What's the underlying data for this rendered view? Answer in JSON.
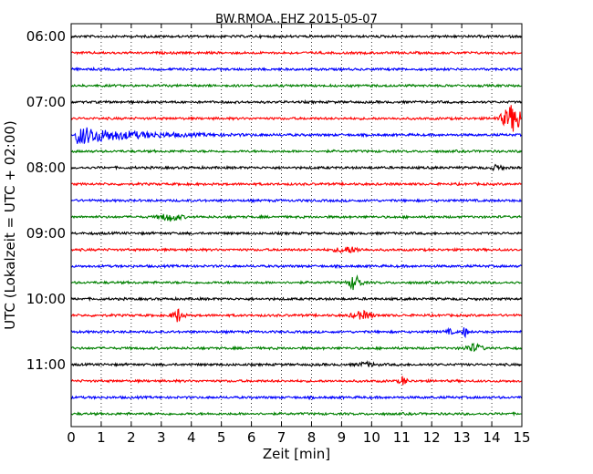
{
  "chart_data": {
    "type": "line",
    "title": "BW.RMOA..EHZ 2015-05-07",
    "xlabel": "Zeit  [min]",
    "ylabel": "UTC (Lokalzeit = UTC + 02:00)",
    "xlim": [
      0,
      15
    ],
    "x_ticks": [
      "0",
      "1",
      "2",
      "3",
      "4",
      "5",
      "6",
      "7",
      "8",
      "9",
      "10",
      "11",
      "12",
      "13",
      "14",
      "15"
    ],
    "y_ticks": [
      "06:00",
      "07:00",
      "08:00",
      "09:00",
      "10:00",
      "11:00"
    ],
    "grid": {
      "vertical": true,
      "style": "dotted"
    },
    "trace_colors": [
      "#000000",
      "#ff0000",
      "#0000ff",
      "#008000"
    ],
    "series": [
      {
        "start": "06:00",
        "color": "#000000",
        "events": []
      },
      {
        "start": "06:15",
        "color": "#ff0000",
        "events": []
      },
      {
        "start": "06:30",
        "color": "#0000ff",
        "events": []
      },
      {
        "start": "06:45",
        "color": "#008000",
        "events": []
      },
      {
        "start": "07:00",
        "color": "#000000",
        "events": []
      },
      {
        "start": "07:15",
        "color": "#ff0000",
        "events": [
          {
            "minute": 14.7,
            "amplitude": 14,
            "duration": 0.6
          }
        ]
      },
      {
        "start": "07:30",
        "color": "#0000ff",
        "events": [
          {
            "minute": 0.2,
            "amplitude": 10,
            "duration": 3.5
          }
        ]
      },
      {
        "start": "07:45",
        "color": "#008000",
        "events": []
      },
      {
        "start": "08:00",
        "color": "#000000",
        "events": [
          {
            "minute": 14.2,
            "amplitude": 3,
            "duration": 0.3
          }
        ]
      },
      {
        "start": "08:15",
        "color": "#ff0000",
        "events": []
      },
      {
        "start": "08:30",
        "color": "#0000ff",
        "events": []
      },
      {
        "start": "08:45",
        "color": "#008000",
        "events": [
          {
            "minute": 3.3,
            "amplitude": 4,
            "duration": 0.6
          }
        ]
      },
      {
        "start": "09:00",
        "color": "#000000",
        "events": []
      },
      {
        "start": "09:15",
        "color": "#ff0000",
        "events": [
          {
            "minute": 9.2,
            "amplitude": 3,
            "duration": 0.7
          }
        ]
      },
      {
        "start": "09:30",
        "color": "#0000ff",
        "events": []
      },
      {
        "start": "09:45",
        "color": "#008000",
        "events": [
          {
            "minute": 9.45,
            "amplitude": 8,
            "duration": 0.35
          }
        ]
      },
      {
        "start": "10:00",
        "color": "#000000",
        "events": []
      },
      {
        "start": "10:15",
        "color": "#ff0000",
        "events": [
          {
            "minute": 3.55,
            "amplitude": 7,
            "duration": 0.3
          },
          {
            "minute": 9.7,
            "amplitude": 4,
            "duration": 0.6
          }
        ]
      },
      {
        "start": "10:30",
        "color": "#0000ff",
        "events": [
          {
            "minute": 12.6,
            "amplitude": 2,
            "duration": 0.3
          },
          {
            "minute": 13.1,
            "amplitude": 5,
            "duration": 0.15
          }
        ]
      },
      {
        "start": "10:45",
        "color": "#008000",
        "events": [
          {
            "minute": 13.4,
            "amplitude": 4,
            "duration": 0.5
          }
        ]
      },
      {
        "start": "11:00",
        "color": "#000000",
        "events": [
          {
            "minute": 9.8,
            "amplitude": 2,
            "duration": 0.5
          }
        ]
      },
      {
        "start": "11:15",
        "color": "#ff0000",
        "events": [
          {
            "minute": 11.05,
            "amplitude": 5,
            "duration": 0.2
          }
        ]
      },
      {
        "start": "11:30",
        "color": "#0000ff",
        "events": []
      },
      {
        "start": "11:45",
        "color": "#008000",
        "events": []
      }
    ]
  }
}
